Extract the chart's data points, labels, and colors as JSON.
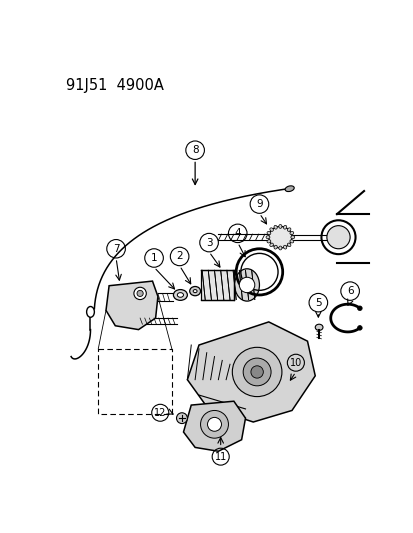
{
  "title": "91J51  4900A",
  "bg_color": "#ffffff",
  "title_fontsize": 10.5,
  "circle_r": 0.028,
  "fs_label": 7.5
}
